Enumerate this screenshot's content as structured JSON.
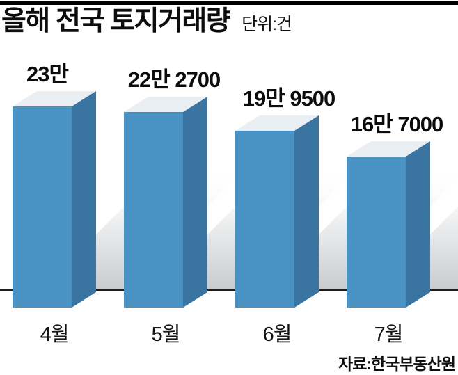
{
  "header": {
    "title": "올해 전국 토지거래량",
    "unit_label": "단위:건"
  },
  "source": "자료:한국부동산원",
  "chart_data": {
    "type": "bar",
    "style": "3d-column-infographic",
    "title": "올해 전국 토지거래량",
    "unit": "건",
    "categories": [
      "4월",
      "5월",
      "6월",
      "7월"
    ],
    "values": [
      230000,
      222700,
      199500,
      167000
    ],
    "value_labels": [
      "23만",
      "22만 2700",
      "19만 9500",
      "16만 7000"
    ],
    "ylim": [
      0,
      230000
    ],
    "grid": false,
    "legend": false,
    "source": "자료:한국부동산원",
    "colors": {
      "bar_front": "#4a92c3",
      "bar_side": "#3a75a2",
      "bar_top": "#e9eef3",
      "shadow": "#d2d4d6",
      "axis": "#1d1d1b",
      "text": "#0d0d0d"
    }
  }
}
